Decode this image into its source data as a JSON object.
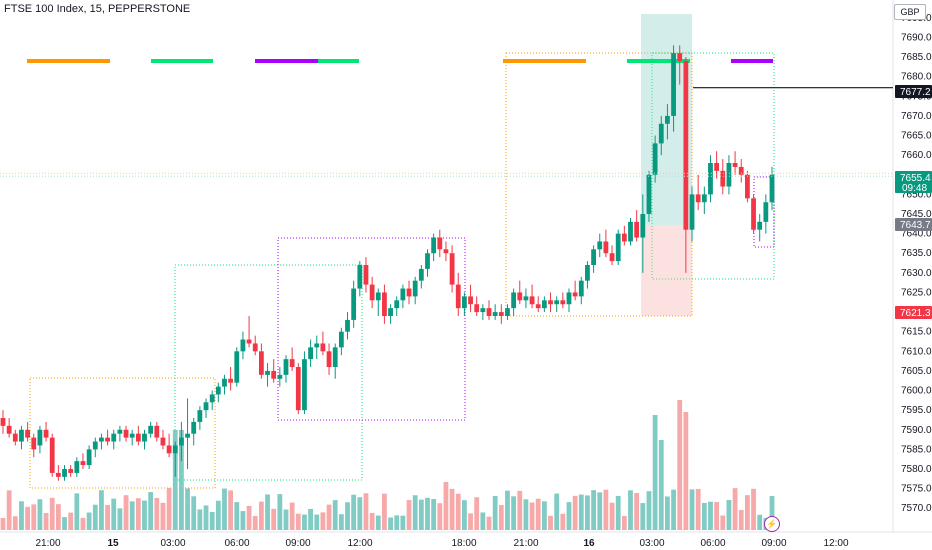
{
  "header": {
    "title": "FTSE 100 Index, 15, PEPPERSTONE"
  },
  "axis": {
    "currency": "GBP",
    "y_ticks": [
      "7695.0",
      "7690.0",
      "7685.0",
      "7680.0",
      "7675.0",
      "7670.0",
      "7665.0",
      "7660.0",
      "7655.0",
      "7650.0",
      "7645.0",
      "7640.0",
      "7635.0",
      "7630.0",
      "7625.0",
      "7620.0",
      "7615.0",
      "7610.0",
      "7605.0",
      "7600.0",
      "7595.0",
      "7590.0",
      "7585.0",
      "7580.0",
      "7575.0",
      "7570.0"
    ],
    "x_ticks": [
      "21:00",
      "15",
      "03:00",
      "06:00",
      "09:00",
      "12:00",
      "18:00",
      "21:00",
      "16",
      "03:00",
      "06:00",
      "09:00",
      "12:00"
    ]
  },
  "price_tags": [
    {
      "label": "7677.2",
      "color": "#131722"
    },
    {
      "label": "7655.4",
      "sub": "09:48",
      "color": "#089981"
    },
    {
      "label": "7643.7",
      "color": "#787b86"
    },
    {
      "label": "7621.3",
      "color": "#f23645"
    }
  ],
  "colors": {
    "up": "#089981",
    "down": "#f23645",
    "vol_up": "#80cbc4",
    "vol_down": "#f7a9a9",
    "orange": "#ff9800",
    "green": "#00e676",
    "purple": "#aa00ff"
  },
  "chart_data": {
    "type": "candlestick",
    "title": "FTSE 100 Index, 15, PEPPERSTONE",
    "ylim": [
      7567,
      7697
    ],
    "last_price": 7655.4,
    "horizontal_level": 7677.2,
    "session_high_line": 7677.2,
    "candles": [
      [
        7593,
        7595,
        7589,
        7591
      ],
      [
        7591,
        7593,
        7588,
        7589
      ],
      [
        7589,
        7590,
        7586,
        7587
      ],
      [
        7587,
        7591,
        7585,
        7590
      ],
      [
        7590,
        7592,
        7587,
        7588
      ],
      [
        7588,
        7589,
        7583,
        7585
      ],
      [
        7586,
        7591,
        7584,
        7590
      ],
      [
        7590,
        7592,
        7587,
        7588
      ],
      [
        7588,
        7589,
        7578,
        7579
      ],
      [
        7579,
        7581,
        7577,
        7578
      ],
      [
        7578,
        7581,
        7577,
        7580
      ],
      [
        7580,
        7581,
        7578,
        7579
      ],
      [
        7579,
        7583,
        7578,
        7582
      ],
      [
        7582,
        7584,
        7580,
        7581
      ],
      [
        7581,
        7586,
        7580,
        7585
      ],
      [
        7585,
        7588,
        7583,
        7587
      ],
      [
        7587,
        7589,
        7585,
        7588
      ],
      [
        7588,
        7590,
        7586,
        7587
      ],
      [
        7587,
        7590,
        7585,
        7589
      ],
      [
        7589,
        7591,
        7587,
        7590
      ],
      [
        7590,
        7591,
        7587,
        7588
      ],
      [
        7588,
        7590,
        7586,
        7589
      ],
      [
        7589,
        7591,
        7586,
        7587
      ],
      [
        7587,
        7590,
        7585,
        7589
      ],
      [
        7589,
        7592,
        7588,
        7591
      ],
      [
        7591,
        7592,
        7587,
        7588
      ],
      [
        7588,
        7590,
        7585,
        7586
      ],
      [
        7586,
        7589,
        7583,
        7584
      ],
      [
        7584,
        7587,
        7578,
        7586
      ],
      [
        7586,
        7592,
        7582,
        7588
      ],
      [
        7588,
        7598,
        7580,
        7589
      ],
      [
        7589,
        7593,
        7586,
        7592
      ],
      [
        7592,
        7596,
        7590,
        7595
      ],
      [
        7595,
        7598,
        7593,
        7597
      ],
      [
        7597,
        7600,
        7595,
        7599
      ],
      [
        7599,
        7602,
        7597,
        7601
      ],
      [
        7601,
        7604,
        7599,
        7603
      ],
      [
        7603,
        7606,
        7600,
        7602
      ],
      [
        7602,
        7611,
        7601,
        7610
      ],
      [
        7610,
        7615,
        7608,
        7613
      ],
      [
        7613,
        7619,
        7611,
        7612
      ],
      [
        7612,
        7614,
        7609,
        7610
      ],
      [
        7610,
        7612,
        7603,
        7604
      ],
      [
        7604,
        7607,
        7601,
        7605
      ],
      [
        7605,
        7608,
        7602,
        7603
      ],
      [
        7603,
        7606,
        7601,
        7604
      ],
      [
        7604,
        7609,
        7602,
        7608
      ],
      [
        7608,
        7611,
        7605,
        7606
      ],
      [
        7606,
        7607,
        7594,
        7595
      ],
      [
        7595,
        7610,
        7594,
        7608
      ],
      [
        7608,
        7613,
        7606,
        7611
      ],
      [
        7611,
        7614,
        7608,
        7612
      ],
      [
        7612,
        7615,
        7609,
        7610
      ],
      [
        7610,
        7612,
        7604,
        7606
      ],
      [
        7606,
        7612,
        7603,
        7611
      ],
      [
        7611,
        7616,
        7609,
        7615
      ],
      [
        7615,
        7620,
        7613,
        7618
      ],
      [
        7618,
        7628,
        7616,
        7626
      ],
      [
        7626,
        7633,
        7624,
        7632
      ],
      [
        7632,
        7634,
        7625,
        7627
      ],
      [
        7627,
        7629,
        7621,
        7623
      ],
      [
        7623,
        7626,
        7619,
        7625
      ],
      [
        7625,
        7627,
        7617,
        7619
      ],
      [
        7619,
        7622,
        7617,
        7621
      ],
      [
        7621,
        7624,
        7619,
        7623
      ],
      [
        7623,
        7627,
        7621,
        7626
      ],
      [
        7626,
        7628,
        7622,
        7624
      ],
      [
        7624,
        7629,
        7622,
        7628
      ],
      [
        7628,
        7632,
        7626,
        7631
      ],
      [
        7631,
        7636,
        7629,
        7635
      ],
      [
        7635,
        7640,
        7633,
        7639
      ],
      [
        7639,
        7641,
        7634,
        7636
      ],
      [
        7636,
        7638,
        7633,
        7635
      ],
      [
        7635,
        7637,
        7625,
        7627
      ],
      [
        7627,
        7630,
        7619,
        7621
      ],
      [
        7621,
        7625,
        7619,
        7624
      ],
      [
        7624,
        7627,
        7620,
        7622
      ],
      [
        7622,
        7624,
        7619,
        7620
      ],
      [
        7620,
        7622,
        7618,
        7621
      ],
      [
        7621,
        7623,
        7618,
        7619
      ],
      [
        7619,
        7622,
        7618,
        7620
      ],
      [
        7620,
        7622,
        7617,
        7619
      ],
      [
        7619,
        7622,
        7618,
        7621
      ],
      [
        7621,
        7626,
        7619,
        7625
      ],
      [
        7625,
        7628,
        7622,
        7623
      ],
      [
        7623,
        7626,
        7621,
        7624
      ],
      [
        7624,
        7627,
        7621,
        7622
      ],
      [
        7622,
        7624,
        7620,
        7621
      ],
      [
        7621,
        7624,
        7620,
        7623
      ],
      [
        7623,
        7625,
        7620,
        7622
      ],
      [
        7622,
        7624,
        7620,
        7623
      ],
      [
        7623,
        7625,
        7621,
        7622
      ],
      [
        7622,
        7626,
        7620,
        7625
      ],
      [
        7625,
        7628,
        7623,
        7624
      ],
      [
        7624,
        7629,
        7622,
        7628
      ],
      [
        7628,
        7633,
        7626,
        7632
      ],
      [
        7632,
        7637,
        7630,
        7636
      ],
      [
        7636,
        7640,
        7634,
        7638
      ],
      [
        7638,
        7641,
        7634,
        7635
      ],
      [
        7635,
        7637,
        7632,
        7633
      ],
      [
        7633,
        7641,
        7632,
        7640
      ],
      [
        7640,
        7642,
        7637,
        7638
      ],
      [
        7638,
        7644,
        7637,
        7643
      ],
      [
        7643,
        7646,
        7638,
        7639
      ],
      [
        7639,
        7650,
        7630,
        7645
      ],
      [
        7645,
        7656,
        7643,
        7655
      ],
      [
        7655,
        7665,
        7653,
        7663
      ],
      [
        7663,
        7670,
        7660,
        7668
      ],
      [
        7668,
        7673,
        7664,
        7670
      ],
      [
        7670,
        7688,
        7666,
        7686
      ],
      [
        7686,
        7688,
        7678,
        7684
      ],
      [
        7684,
        7685,
        7630,
        7641
      ],
      [
        7641,
        7652,
        7638,
        7650
      ],
      [
        7650,
        7655,
        7646,
        7648
      ],
      [
        7648,
        7652,
        7645,
        7650
      ],
      [
        7650,
        7660,
        7648,
        7658
      ],
      [
        7658,
        7661,
        7654,
        7656
      ],
      [
        7656,
        7659,
        7650,
        7652
      ],
      [
        7652,
        7660,
        7650,
        7658
      ],
      [
        7658,
        7661,
        7655,
        7657
      ],
      [
        7657,
        7659,
        7653,
        7655
      ],
      [
        7655,
        7656,
        7648,
        7649
      ],
      [
        7649,
        7650,
        7640,
        7641
      ],
      [
        7641,
        7645,
        7638,
        7643
      ],
      [
        7643,
        7650,
        7640,
        7648
      ],
      [
        7648,
        7657,
        7646,
        7655
      ]
    ]
  }
}
